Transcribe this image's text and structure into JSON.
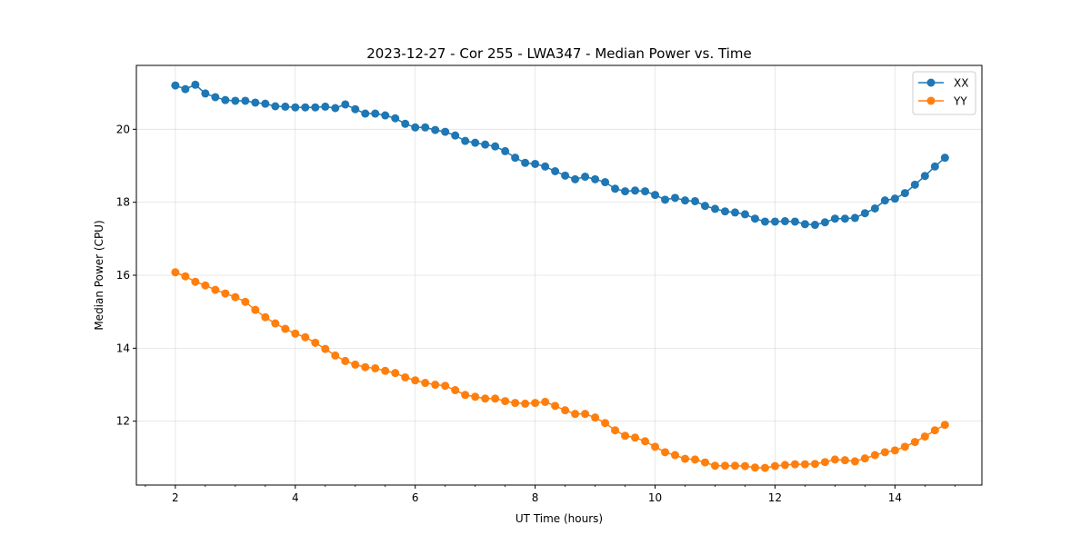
{
  "chart_data": {
    "type": "line",
    "title": "2023-12-27 - Cor 255 - LWA347 - Median Power vs. Time",
    "xlabel": "UT Time (hours)",
    "ylabel": "Median Power (CPU)",
    "xlim": [
      1.35,
      15.45
    ],
    "ylim": [
      10.25,
      21.75
    ],
    "xticks": [
      2,
      4,
      6,
      8,
      10,
      12,
      14
    ],
    "xtick_labels": [
      "2",
      "4",
      "6",
      "8",
      "10",
      "12",
      "14"
    ],
    "yticks": [
      12,
      14,
      16,
      18,
      20
    ],
    "ytick_labels": [
      "12",
      "14",
      "16",
      "18",
      "20"
    ],
    "grid": true,
    "legend_position": "top-right",
    "x": [
      2.0,
      2.1667,
      2.3333,
      2.5,
      2.6667,
      2.8333,
      3.0,
      3.1667,
      3.3333,
      3.5,
      3.6667,
      3.8333,
      4.0,
      4.1667,
      4.3333,
      4.5,
      4.6667,
      4.8333,
      5.0,
      5.1667,
      5.3333,
      5.5,
      5.6667,
      5.8333,
      6.0,
      6.1667,
      6.3333,
      6.5,
      6.6667,
      6.8333,
      7.0,
      7.1667,
      7.3333,
      7.5,
      7.6667,
      7.8333,
      8.0,
      8.1667,
      8.3333,
      8.5,
      8.6667,
      8.8333,
      9.0,
      9.1667,
      9.3333,
      9.5,
      9.6667,
      9.8333,
      10.0,
      10.1667,
      10.3333,
      10.5,
      10.6667,
      10.8333,
      11.0,
      11.1667,
      11.3333,
      11.5,
      11.6667,
      11.8333,
      12.0,
      12.1667,
      12.3333,
      12.5,
      12.6667,
      12.8333,
      13.0,
      13.1667,
      13.3333,
      13.5,
      13.6667,
      13.8333,
      14.0,
      14.1667,
      14.3333,
      14.5,
      14.6667,
      14.8333
    ],
    "series": [
      {
        "name": "XX",
        "color": "#1f77b4",
        "values": [
          21.2,
          21.1,
          21.22,
          20.98,
          20.88,
          20.8,
          20.78,
          20.78,
          20.73,
          20.7,
          20.63,
          20.62,
          20.6,
          20.6,
          20.6,
          20.62,
          20.58,
          20.68,
          20.55,
          20.43,
          20.43,
          20.38,
          20.3,
          20.15,
          20.05,
          20.05,
          19.98,
          19.93,
          19.83,
          19.68,
          19.63,
          19.58,
          19.53,
          19.4,
          19.22,
          19.08,
          19.05,
          18.98,
          18.85,
          18.73,
          18.63,
          18.7,
          18.63,
          18.55,
          18.37,
          18.3,
          18.32,
          18.3,
          18.2,
          18.07,
          18.12,
          18.05,
          18.03,
          17.9,
          17.82,
          17.75,
          17.72,
          17.67,
          17.55,
          17.47,
          17.47,
          17.48,
          17.47,
          17.4,
          17.38,
          17.45,
          17.55,
          17.55,
          17.57,
          17.7,
          17.83,
          18.05,
          18.1,
          18.25,
          18.48,
          18.72,
          18.98,
          19.22
        ]
      },
      {
        "name": "YY",
        "color": "#ff7f0e",
        "values": [
          16.08,
          15.97,
          15.82,
          15.72,
          15.6,
          15.5,
          15.4,
          15.27,
          15.05,
          14.85,
          14.68,
          14.53,
          14.4,
          14.3,
          14.15,
          13.98,
          13.8,
          13.65,
          13.55,
          13.48,
          13.45,
          13.38,
          13.32,
          13.2,
          13.12,
          13.05,
          13.0,
          12.97,
          12.85,
          12.72,
          12.67,
          12.62,
          12.62,
          12.55,
          12.5,
          12.48,
          12.5,
          12.53,
          12.42,
          12.3,
          12.2,
          12.2,
          12.1,
          11.95,
          11.75,
          11.6,
          11.55,
          11.45,
          11.3,
          11.15,
          11.07,
          10.97,
          10.95,
          10.87,
          10.78,
          10.78,
          10.78,
          10.77,
          10.73,
          10.72,
          10.77,
          10.8,
          10.82,
          10.82,
          10.83,
          10.88,
          10.95,
          10.93,
          10.9,
          10.98,
          11.07,
          11.15,
          11.2,
          11.3,
          11.43,
          11.58,
          11.75,
          11.9
        ]
      }
    ]
  }
}
